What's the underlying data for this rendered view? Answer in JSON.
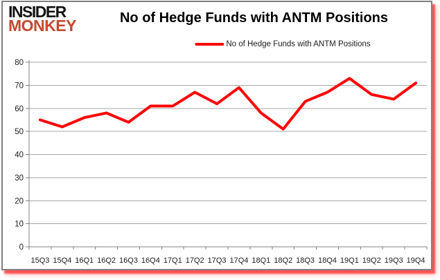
{
  "logo": {
    "line1": "INSIDER",
    "line2": "MONKEY"
  },
  "header": {
    "title": "No of Hedge Funds with ANTM Positions"
  },
  "legend": {
    "label": "No of Hedge Funds with ANTM Positions"
  },
  "colors": {
    "line": "#ff0000",
    "logo_black": "#141414",
    "logo_red": "#c4492f",
    "grid": "#a6a6a6",
    "axis": "#808080",
    "tick_text": "#1a1a1a",
    "frame_border": "#7f7f7f",
    "frame_shadow": "#ff0000"
  },
  "chart_data": {
    "type": "line",
    "title": "No of Hedge Funds with ANTM Positions",
    "categories": [
      "15Q3",
      "15Q4",
      "16Q1",
      "16Q2",
      "16Q3",
      "16Q4",
      "17Q1",
      "17Q2",
      "17Q3",
      "17Q4",
      "18Q1",
      "18Q2",
      "18Q3",
      "18Q4",
      "19Q1",
      "19Q2",
      "19Q3",
      "19Q4"
    ],
    "series": [
      {
        "name": "No of Hedge Funds with ANTM Positions",
        "color": "#ff0000",
        "values": [
          55,
          52,
          56,
          58,
          54,
          61,
          61,
          67,
          62,
          69,
          58,
          51,
          63,
          67,
          73,
          66,
          64,
          71
        ]
      }
    ],
    "xlabel": "",
    "ylabel": "",
    "ylim": [
      0,
      80
    ],
    "ytick_step": 10,
    "grid": true,
    "legend_position": "top-center"
  }
}
